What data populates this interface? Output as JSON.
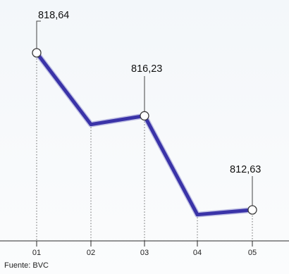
{
  "chart_data": {
    "type": "line",
    "categories": [
      "01",
      "02",
      "03",
      "04",
      "05"
    ],
    "values": [
      818.64,
      815.9,
      816.23,
      812.45,
      812.63
    ],
    "data_labels": [
      {
        "index": 0,
        "text": "818,64"
      },
      {
        "index": 2,
        "text": "816,23"
      },
      {
        "index": 4,
        "text": "812,63"
      }
    ],
    "ylim": [
      811.5,
      819.5
    ],
    "grid": "vertical dotted lines at each category",
    "line_color": "#3a33a8",
    "title": "",
    "xlabel": "",
    "ylabel": ""
  },
  "source": "Fuente: BVC"
}
